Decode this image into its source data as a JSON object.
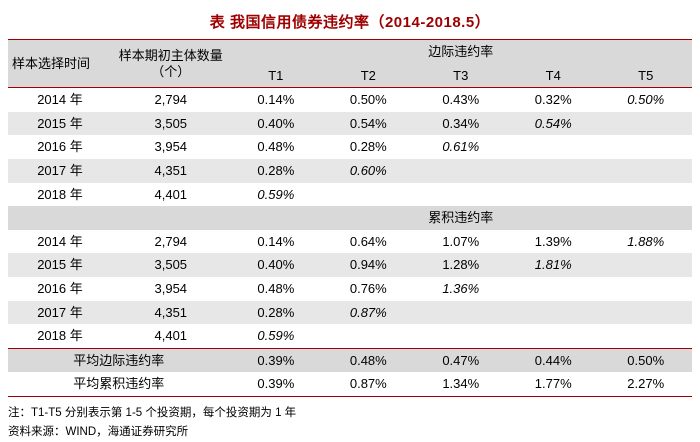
{
  "chart_data": {
    "type": "table",
    "title": "表 我国信用债券违约率（2014-2018.5）",
    "header": {
      "time": "样本选择时间",
      "count": "样本期初主体数量（个）",
      "t_labels": [
        "T1",
        "T2",
        "T3",
        "T4",
        "T5"
      ]
    },
    "section_headers": {
      "marginal": "边际违约率",
      "cumulative": "累积违约率"
    },
    "marginal_rows": [
      {
        "year": "2014 年",
        "count": "2,794",
        "values": [
          "0.14%",
          "0.50%",
          "0.43%",
          "0.32%",
          "0.50%"
        ],
        "italic_index": 4
      },
      {
        "year": "2015 年",
        "count": "3,505",
        "values": [
          "0.40%",
          "0.54%",
          "0.34%",
          "0.54%",
          ""
        ],
        "italic_index": 3
      },
      {
        "year": "2016 年",
        "count": "3,954",
        "values": [
          "0.48%",
          "0.28%",
          "0.61%",
          "",
          ""
        ],
        "italic_index": 2
      },
      {
        "year": "2017 年",
        "count": "4,351",
        "values": [
          "0.28%",
          "0.60%",
          "",
          "",
          ""
        ],
        "italic_index": 1
      },
      {
        "year": "2018 年",
        "count": "4,401",
        "values": [
          "0.59%",
          "",
          "",
          "",
          ""
        ],
        "italic_index": 0
      }
    ],
    "cumulative_rows": [
      {
        "year": "2014 年",
        "count": "2,794",
        "values": [
          "0.14%",
          "0.64%",
          "1.07%",
          "1.39%",
          "1.88%"
        ],
        "italic_index": 4
      },
      {
        "year": "2015 年",
        "count": "3,505",
        "values": [
          "0.40%",
          "0.94%",
          "1.28%",
          "1.81%",
          ""
        ],
        "italic_index": 3
      },
      {
        "year": "2016 年",
        "count": "3,954",
        "values": [
          "0.48%",
          "0.76%",
          "1.36%",
          "",
          ""
        ],
        "italic_index": 2
      },
      {
        "year": "2017 年",
        "count": "4,351",
        "values": [
          "0.28%",
          "0.87%",
          "",
          "",
          ""
        ],
        "italic_index": 1
      },
      {
        "year": "2018 年",
        "count": "4,401",
        "values": [
          "0.59%",
          "",
          "",
          "",
          ""
        ],
        "italic_index": 0
      }
    ],
    "summary_rows": [
      {
        "label": "平均边际违约率",
        "values": [
          "0.39%",
          "0.48%",
          "0.47%",
          "0.44%",
          "0.50%"
        ]
      },
      {
        "label": "平均累积违约率",
        "values": [
          "0.39%",
          "0.87%",
          "1.34%",
          "1.77%",
          "2.27%"
        ]
      }
    ]
  },
  "notes": [
    "注：T1-T5 分别表示第 1-5 个投资期，每个投资期为 1 年",
    "资料来源：WIND，海通证券研究所"
  ],
  "colors": {
    "accent": "#9e0000",
    "header_bg": "#d9d9d9",
    "stripe_bg": "#e7e7e7"
  }
}
